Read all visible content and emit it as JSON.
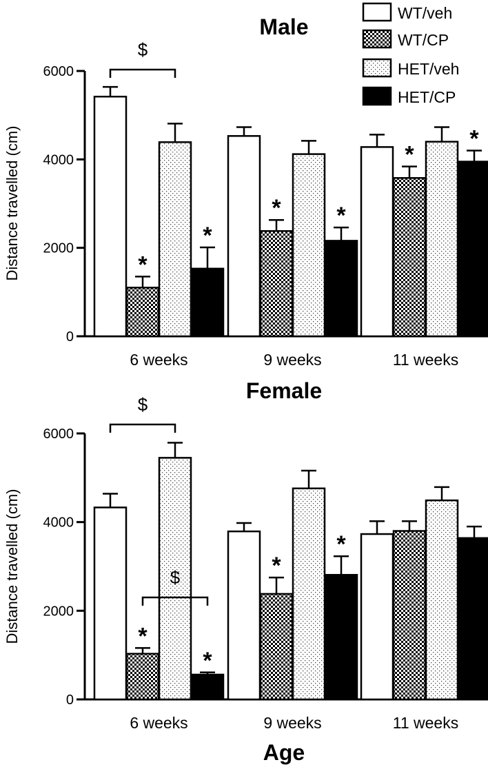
{
  "legend": {
    "items": [
      {
        "label": "WT/veh",
        "pattern": "white"
      },
      {
        "label": "WT/CP",
        "pattern": "checker"
      },
      {
        "label": "HET/veh",
        "pattern": "dots"
      },
      {
        "label": "HET/CP",
        "pattern": "black"
      }
    ]
  },
  "xlabel": "Age",
  "chart_data": [
    {
      "type": "bar",
      "title": "Male",
      "ylabel": "Distance travelled (cm)",
      "ylim": [
        0,
        6000
      ],
      "yticks": [
        "0",
        "2000",
        "4000",
        "6000"
      ],
      "categories": [
        "6 weeks",
        "9 weeks",
        "11 weeks"
      ],
      "series": [
        {
          "name": "WT/veh",
          "values": [
            5420,
            4530,
            4280
          ],
          "errors": [
            220,
            200,
            280
          ]
        },
        {
          "name": "WT/CP",
          "values": [
            1100,
            2380,
            3580
          ],
          "errors": [
            250,
            250,
            260
          ]
        },
        {
          "name": "HET/veh",
          "values": [
            4390,
            4120,
            4400
          ],
          "errors": [
            420,
            300,
            330
          ]
        },
        {
          "name": "HET/CP",
          "values": [
            1530,
            2160,
            3950
          ],
          "errors": [
            480,
            300,
            250
          ]
        }
      ],
      "significance_stars": [
        {
          "series": 1,
          "category": 0,
          "label": "*"
        },
        {
          "series": 3,
          "category": 0,
          "label": "*"
        },
        {
          "series": 1,
          "category": 1,
          "label": "*"
        },
        {
          "series": 3,
          "category": 1,
          "label": "*"
        },
        {
          "series": 1,
          "category": 2,
          "label": "*"
        },
        {
          "series": 3,
          "category": 2,
          "label": "*"
        }
      ],
      "brackets": [
        {
          "from_series": 0,
          "to_series": 2,
          "category": 0,
          "label": "$"
        }
      ]
    },
    {
      "type": "bar",
      "title": "Female",
      "ylabel": "Distance travelled (cm)",
      "ylim": [
        0,
        6000
      ],
      "yticks": [
        "0",
        "2000",
        "4000",
        "6000"
      ],
      "categories": [
        "6 weeks",
        "9 weeks",
        "11 weeks"
      ],
      "series": [
        {
          "name": "WT/veh",
          "values": [
            4330,
            3790,
            3730
          ],
          "errors": [
            310,
            190,
            290
          ]
        },
        {
          "name": "WT/CP",
          "values": [
            1030,
            2380,
            3800
          ],
          "errors": [
            130,
            370,
            220
          ]
        },
        {
          "name": "HET/veh",
          "values": [
            5450,
            4760,
            4490
          ],
          "errors": [
            340,
            400,
            300
          ]
        },
        {
          "name": "HET/CP",
          "values": [
            560,
            2810,
            3640
          ],
          "errors": [
            50,
            420,
            260
          ]
        }
      ],
      "significance_stars": [
        {
          "series": 1,
          "category": 0,
          "label": "*"
        },
        {
          "series": 3,
          "category": 0,
          "label": "*"
        },
        {
          "series": 1,
          "category": 1,
          "label": "*"
        },
        {
          "series": 3,
          "category": 1,
          "label": "*"
        }
      ],
      "brackets": [
        {
          "from_series": 0,
          "to_series": 2,
          "category": 0,
          "label": "$"
        },
        {
          "from_series": 1,
          "to_series": 3,
          "category": 0,
          "label": "$"
        }
      ]
    }
  ]
}
